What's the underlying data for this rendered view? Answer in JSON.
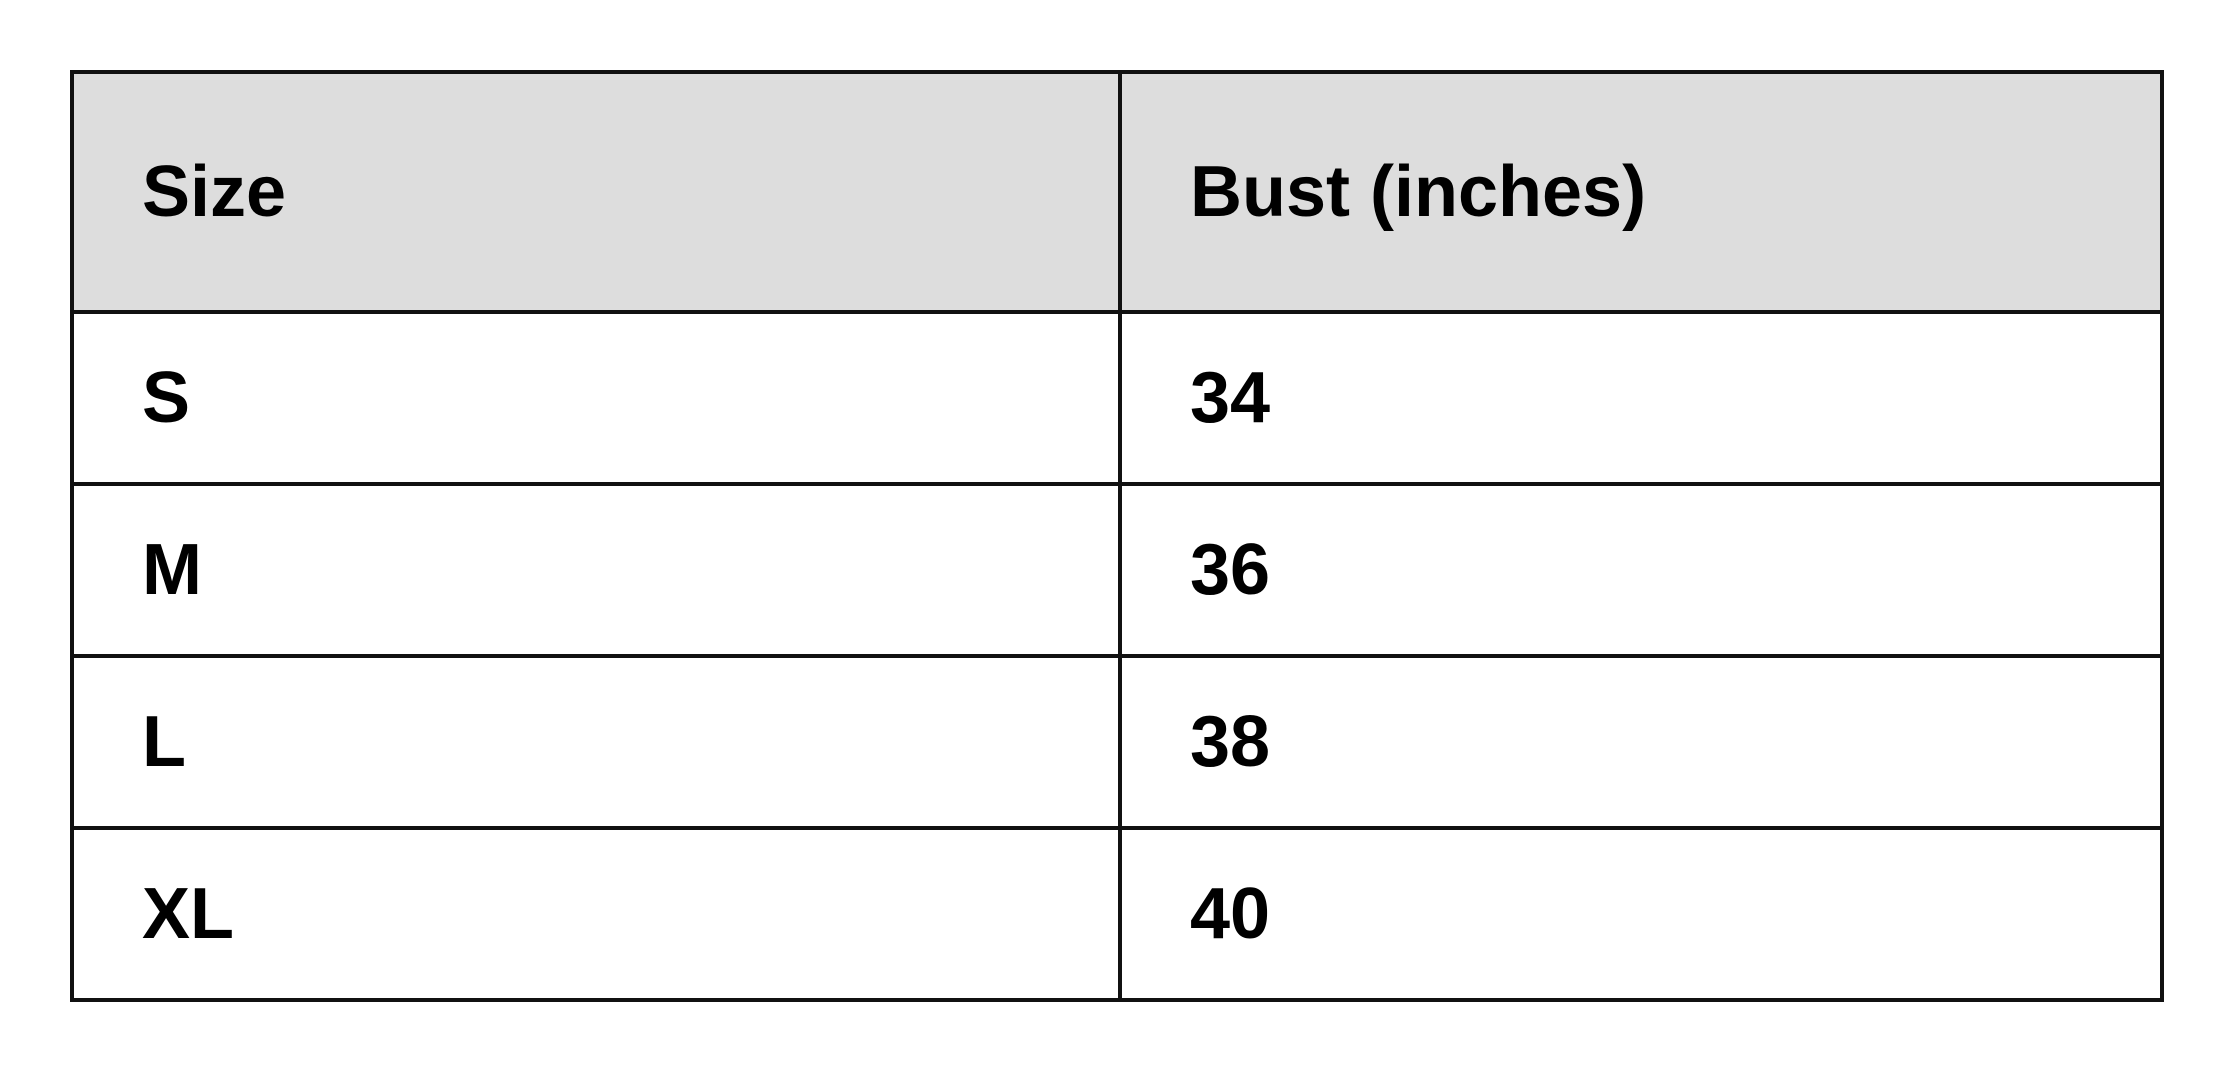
{
  "table": {
    "headers": [
      "Size",
      "Bust (inches)"
    ],
    "rows": [
      [
        "S",
        "34"
      ],
      [
        "M",
        "36"
      ],
      [
        "L",
        "38"
      ],
      [
        "XL",
        "40"
      ]
    ]
  },
  "colors": {
    "header_bg": "#dddddd",
    "border": "#111111"
  }
}
